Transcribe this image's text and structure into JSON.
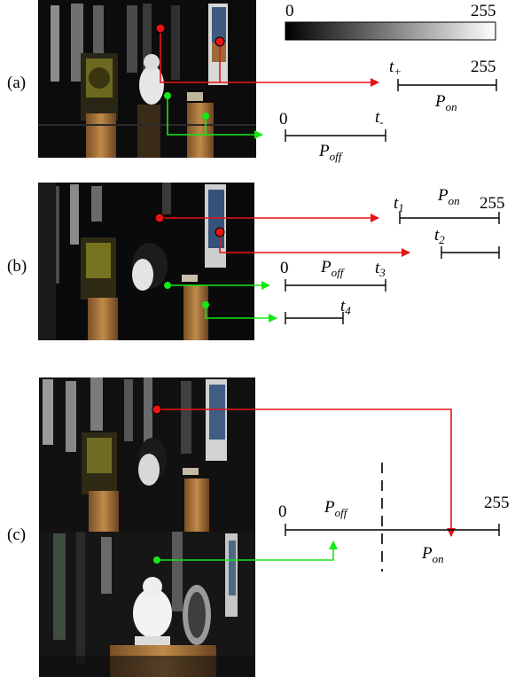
{
  "colorbar": {
    "min_label": "0",
    "max_label": "255",
    "gradient_from": "#000000",
    "gradient_to": "#ffffff"
  },
  "colors": {
    "bright": "#e81414",
    "dark": "#14e814",
    "axis": "#000000"
  },
  "panel_a": {
    "tag": "(a)",
    "on_start": "t",
    "on_start_sub": "+",
    "on_end": "255",
    "on_region": "P",
    "on_region_sub": "on",
    "off_start": "0",
    "off_end": "t",
    "off_end_sub": "-",
    "off_region": "P",
    "off_region_sub": "off"
  },
  "panel_b": {
    "tag": "(b)",
    "t1": "t",
    "t1_sub": "1",
    "on_region": "P",
    "on_region_sub": "on",
    "on_end": "255",
    "t2": "t",
    "t2_sub": "2",
    "off_start": "0",
    "off_region": "P",
    "off_region_sub": "off",
    "t3": "t",
    "t3_sub": "3",
    "t4": "t",
    "t4_sub": "4"
  },
  "panel_c": {
    "tag": "(c)",
    "start": "0",
    "end": "255",
    "off_region": "P",
    "off_region_sub": "off",
    "on_region": "P",
    "on_region_sub": "on"
  }
}
